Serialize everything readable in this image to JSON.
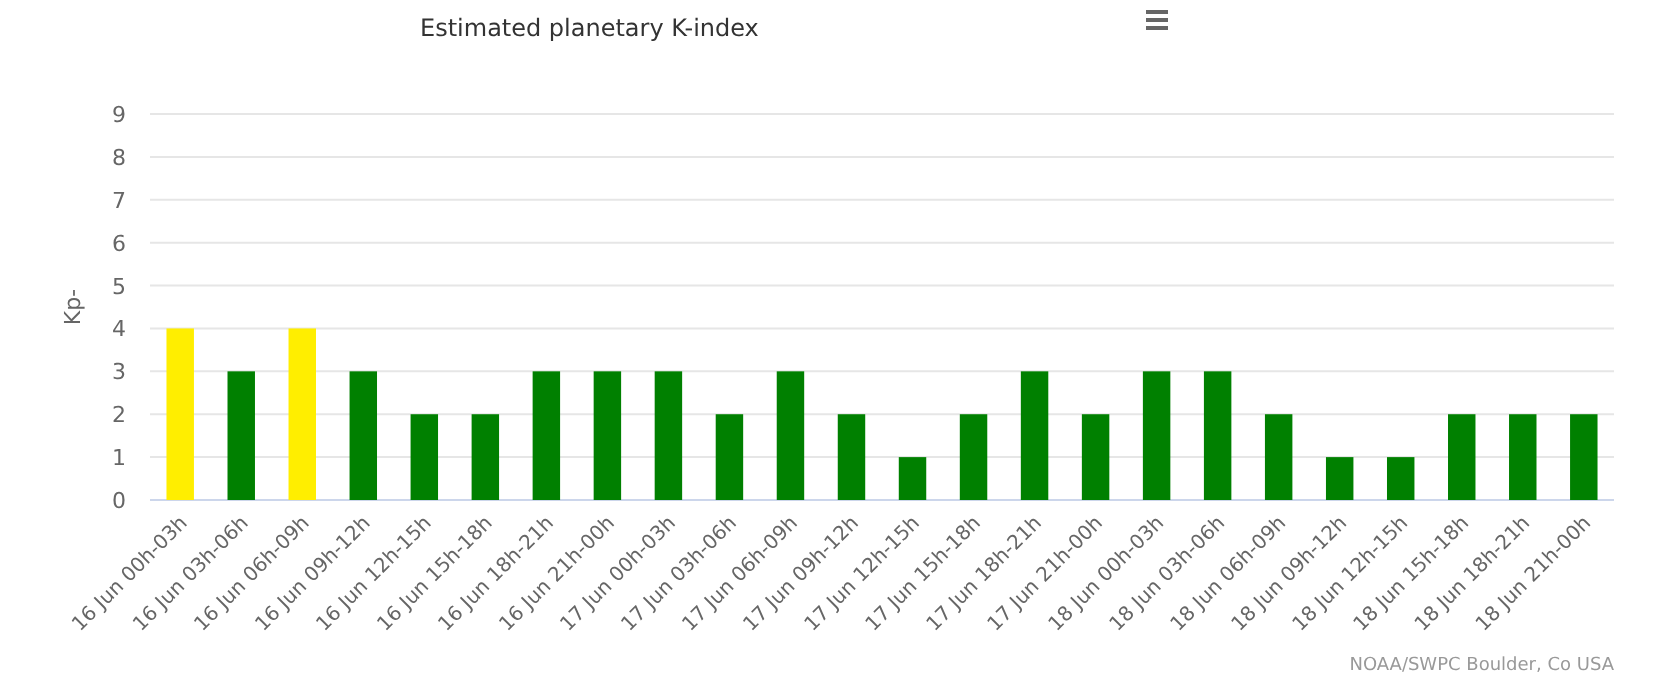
{
  "chart_data": {
    "type": "bar",
    "title": "Estimated planetary K-index",
    "ylabel": "Kp-",
    "categories": [
      "16 Jun 00h-03h",
      "16 Jun 03h-06h",
      "16 Jun 06h-09h",
      "16 Jun 09h-12h",
      "16 Jun 12h-15h",
      "16 Jun 15h-18h",
      "16 Jun 18h-21h",
      "16 Jun 21h-00h",
      "17 Jun 00h-03h",
      "17 Jun 03h-06h",
      "17 Jun 06h-09h",
      "17 Jun 09h-12h",
      "17 Jun 12h-15h",
      "17 Jun 15h-18h",
      "17 Jun 18h-21h",
      "17 Jun 21h-00h",
      "18 Jun 00h-03h",
      "18 Jun 03h-06h",
      "18 Jun 06h-09h",
      "18 Jun 09h-12h",
      "18 Jun 12h-15h",
      "18 Jun 15h-18h",
      "18 Jun 18h-21h",
      "18 Jun 21h-00h"
    ],
    "values": [
      4,
      3,
      4,
      3,
      2,
      2,
      3,
      3,
      3,
      2,
      3,
      2,
      1,
      2,
      3,
      2,
      3,
      3,
      2,
      1,
      1,
      2,
      2,
      2
    ],
    "colors": [
      "#ffee00",
      "#008000",
      "#ffee00",
      "#008000",
      "#008000",
      "#008000",
      "#008000",
      "#008000",
      "#008000",
      "#008000",
      "#008000",
      "#008000",
      "#008000",
      "#008000",
      "#008000",
      "#008000",
      "#008000",
      "#008000",
      "#008000",
      "#008000",
      "#008000",
      "#008000",
      "#008000",
      "#008000"
    ],
    "ylim": [
      0,
      9
    ],
    "yticks": [
      0,
      1,
      2,
      3,
      4,
      5,
      6,
      7,
      8,
      9
    ],
    "grid": "y",
    "annotations": [
      "NOAA/SWPC Boulder, Co USA"
    ]
  }
}
